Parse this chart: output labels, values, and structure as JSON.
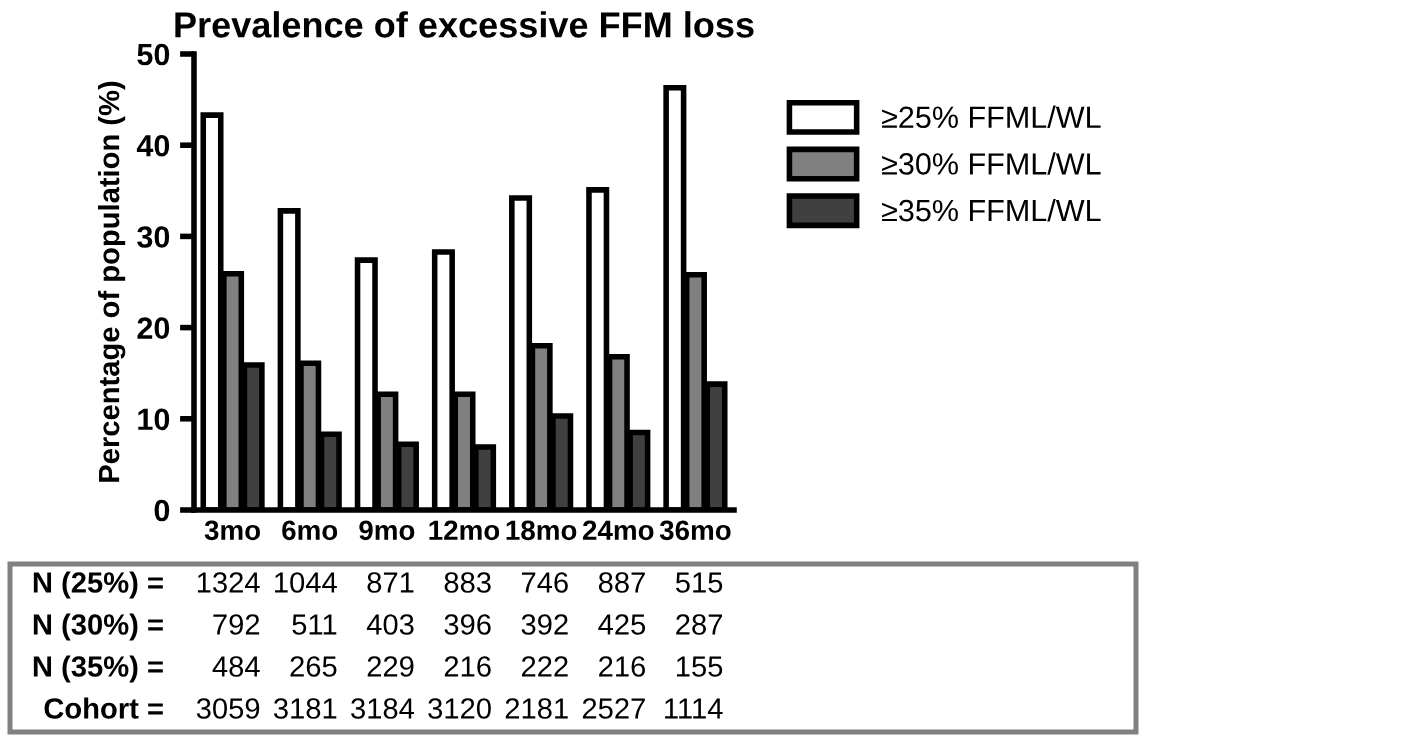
{
  "chart_data": {
    "type": "bar",
    "title": "Prevalence of excessive FFM loss",
    "ylabel": "Percentage of population (%)",
    "categories": [
      "3mo",
      "6mo",
      "9mo",
      "12mo",
      "18mo",
      "24mo",
      "36mo"
    ],
    "series": [
      {
        "name": "≥25% FFML/WL",
        "color": "#ffffff",
        "values": [
          43.3,
          32.8,
          27.4,
          28.3,
          34.2,
          35.1,
          46.3
        ]
      },
      {
        "name": "≥30% FFML/WL",
        "color": "#808080",
        "values": [
          25.9,
          16.1,
          12.7,
          12.7,
          18.0,
          16.8,
          25.8
        ]
      },
      {
        "name": "≥35% FFML/WL",
        "color": "#404040",
        "values": [
          15.9,
          8.3,
          7.2,
          6.9,
          10.3,
          8.5,
          13.8
        ]
      }
    ],
    "ylim": [
      0,
      50
    ],
    "yticks": [
      0,
      10,
      20,
      30,
      40,
      50
    ],
    "grid": false,
    "legend": "right",
    "annotations": [
      "N (25%) =",
      "1324",
      "1044",
      "871",
      "883",
      "746",
      "887",
      "515",
      "N (30%) =",
      "792",
      "511",
      "403",
      "396",
      "392",
      "425",
      "287",
      "N (35%) =",
      "484",
      "265",
      "229",
      "216",
      "222",
      "216",
      "155",
      "Cohort =",
      "3059",
      "3181",
      "3184",
      "3120",
      "2181",
      "2527",
      "1114"
    ]
  }
}
